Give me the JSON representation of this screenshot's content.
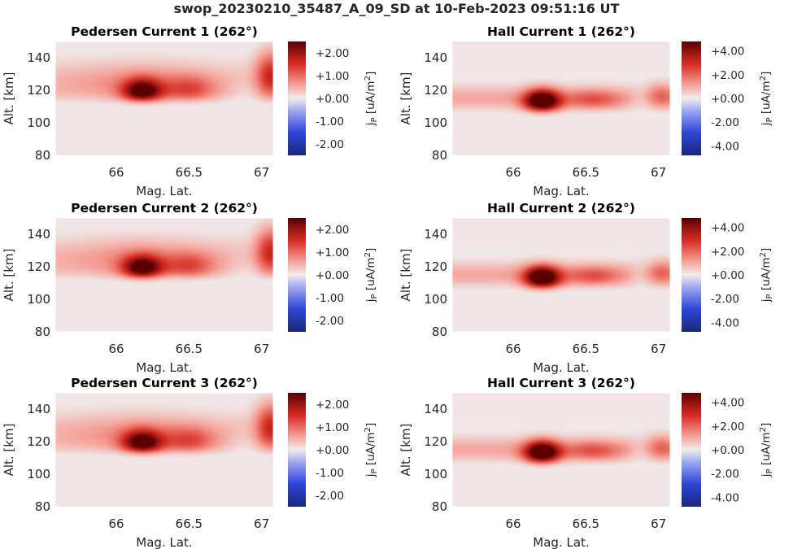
{
  "figure": {
    "title": "swop_20230210_35487_A_09_SD at 10-Feb-2023 09:51:16 UT"
  },
  "colors": {
    "cmap_low": "#19297a",
    "cmap_mid": "#eeeeee",
    "cmap_high": "#5a0000",
    "background_field": "#f0e4e6"
  },
  "chart_data": [
    {
      "type": "heatmap",
      "title": "Pedersen Current 1 (262°)",
      "xlabel": "Mag. Lat.",
      "ylabel": "Alt. [km]",
      "xlim": [
        65.58,
        67.08
      ],
      "ylim": [
        80,
        150
      ],
      "xticks": [
        66,
        66.5,
        67
      ],
      "xtick_labels": [
        "66",
        "66.5",
        "67"
      ],
      "yticks": [
        80,
        100,
        120,
        140
      ],
      "ytick_labels": [
        "80",
        "100",
        "120",
        "140"
      ],
      "colorbar": {
        "label": "j_P [uA/m^2]",
        "vmin": -2.5,
        "vmax": 2.5,
        "ticks": [
          2,
          1,
          0,
          -1,
          -2
        ],
        "tick_labels": [
          "+2.00",
          "+1.00",
          "+0.00",
          "-1.00",
          "-2.00"
        ]
      },
      "model": "pedersen"
    },
    {
      "type": "heatmap",
      "title": "Hall Current 1 (262°)",
      "xlabel": "Mag. Lat.",
      "ylabel": "Alt. [km]",
      "xlim": [
        65.58,
        67.08
      ],
      "ylim": [
        80,
        150
      ],
      "xticks": [
        66,
        66.5,
        67
      ],
      "xtick_labels": [
        "66",
        "66.5",
        "67"
      ],
      "yticks": [
        80,
        100,
        120,
        140
      ],
      "ytick_labels": [
        "80",
        "100",
        "120",
        "140"
      ],
      "colorbar": {
        "label": "j_P [uA/m^2]",
        "vmin": -4.8,
        "vmax": 4.8,
        "ticks": [
          4,
          2,
          0,
          -2,
          -4
        ],
        "tick_labels": [
          "+4.00",
          "+2.00",
          "+0.00",
          "-2.00",
          "-4.00"
        ]
      },
      "model": "hall"
    },
    {
      "type": "heatmap",
      "title": "Pedersen Current 2 (262°)",
      "xlabel": "Mag. Lat.",
      "ylabel": "Alt. [km]",
      "xlim": [
        65.58,
        67.08
      ],
      "ylim": [
        80,
        150
      ],
      "xticks": [
        66,
        66.5,
        67
      ],
      "xtick_labels": [
        "66",
        "66.5",
        "67"
      ],
      "yticks": [
        80,
        100,
        120,
        140
      ],
      "ytick_labels": [
        "80",
        "100",
        "120",
        "140"
      ],
      "colorbar": {
        "label": "j_P [uA/m^2]",
        "vmin": -2.5,
        "vmax": 2.5,
        "ticks": [
          2,
          1,
          0,
          -1,
          -2
        ],
        "tick_labels": [
          "+2.00",
          "+1.00",
          "+0.00",
          "-1.00",
          "-2.00"
        ]
      },
      "model": "pedersen"
    },
    {
      "type": "heatmap",
      "title": "Hall Current 2 (262°)",
      "xlabel": "Mag. Lat.",
      "ylabel": "Alt. [km]",
      "xlim": [
        65.58,
        67.08
      ],
      "ylim": [
        80,
        150
      ],
      "xticks": [
        66,
        66.5,
        67
      ],
      "xtick_labels": [
        "66",
        "66.5",
        "67"
      ],
      "yticks": [
        80,
        100,
        120,
        140
      ],
      "ytick_labels": [
        "80",
        "100",
        "120",
        "140"
      ],
      "colorbar": {
        "label": "j_P [uA/m^2]",
        "vmin": -4.8,
        "vmax": 4.8,
        "ticks": [
          4,
          2,
          0,
          -2,
          -4
        ],
        "tick_labels": [
          "+4.00",
          "+2.00",
          "+0.00",
          "-2.00",
          "-4.00"
        ]
      },
      "model": "hall"
    },
    {
      "type": "heatmap",
      "title": "Pedersen Current 3 (262°)",
      "xlabel": "Mag. Lat.",
      "ylabel": "Alt. [km]",
      "xlim": [
        65.58,
        67.08
      ],
      "ylim": [
        80,
        150
      ],
      "xticks": [
        66,
        66.5,
        67
      ],
      "xtick_labels": [
        "66",
        "66.5",
        "67"
      ],
      "yticks": [
        80,
        100,
        120,
        140
      ],
      "ytick_labels": [
        "80",
        "100",
        "120",
        "140"
      ],
      "colorbar": {
        "label": "j_P [uA/m^2]",
        "vmin": -2.5,
        "vmax": 2.5,
        "ticks": [
          2,
          1,
          0,
          -1,
          -2
        ],
        "tick_labels": [
          "+2.00",
          "+1.00",
          "+0.00",
          "-1.00",
          "-2.00"
        ]
      },
      "model": "pedersen"
    },
    {
      "type": "heatmap",
      "title": "Hall Current 3 (262°)",
      "xlabel": "Mag. Lat.",
      "ylabel": "Alt. [km]",
      "xlim": [
        65.58,
        67.08
      ],
      "ylim": [
        80,
        150
      ],
      "xticks": [
        66,
        66.5,
        67
      ],
      "xtick_labels": [
        "66",
        "66.5",
        "67"
      ],
      "yticks": [
        80,
        100,
        120,
        140
      ],
      "ytick_labels": [
        "80",
        "100",
        "120",
        "140"
      ],
      "colorbar": {
        "label": "j_P [uA/m^2]",
        "vmin": -4.8,
        "vmax": 4.8,
        "ticks": [
          4,
          2,
          0,
          -2,
          -4
        ],
        "tick_labels": [
          "+4.00",
          "+2.00",
          "+0.00",
          "-2.00",
          "-4.00"
        ]
      },
      "model": "hall"
    }
  ]
}
